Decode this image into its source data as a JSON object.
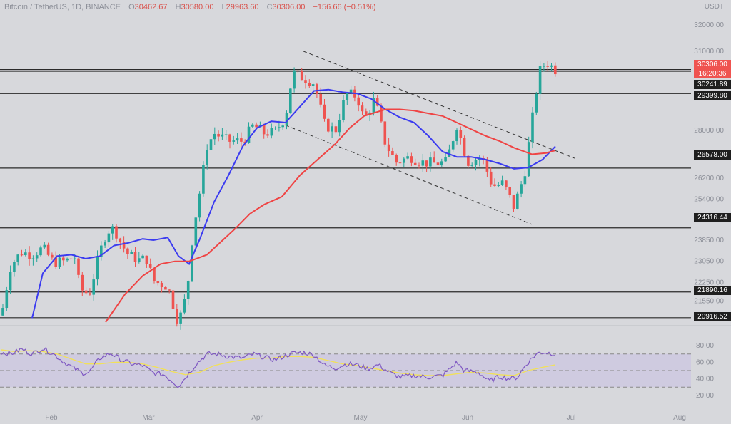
{
  "header": {
    "symbol": "Bitcoin / TetherUS, 1D, BINANCE",
    "o_label": "O",
    "o_value": "30462.67",
    "h_label": "H",
    "h_value": "30580.00",
    "l_label": "L",
    "l_value": "29963.60",
    "c_label": "C",
    "c_value": "30306.00",
    "change": "−156.66 (−0.51%)"
  },
  "unit_label": "USDT",
  "colors": {
    "up": "#26a69a",
    "down": "#ef5350",
    "ma_fast": "#3b3bf0",
    "ma_slow": "#ef4444",
    "rsi": "#7e57c2",
    "rsi_ma": "#f1e05a",
    "price_tag": "#ef5350"
  },
  "price_axis": {
    "min": 20750,
    "max": 32400,
    "ticks": [
      "32000.00",
      "31000.00",
      "28000.00",
      "27000.00",
      "26200.00",
      "25400.00",
      "24600.00",
      "23850.00",
      "23050.00",
      "22250.00",
      "21550.00"
    ]
  },
  "levels": [
    {
      "label": "30241.89",
      "value": 30241.89
    },
    {
      "label": "29399.80",
      "value": 29399.8
    },
    {
      "label": "26578.00",
      "value": 26578
    },
    {
      "label": "24316.44",
      "value": 24316.44
    },
    {
      "label": "21890.16",
      "value": 21890.16
    },
    {
      "label": "20916.52",
      "value": 20916.52
    }
  ],
  "current_price": {
    "label": "30306.00",
    "countdown": "16:20:36",
    "value": 30306
  },
  "rsi_axis": {
    "ticks": [
      "80.00",
      "60.00",
      "40.00",
      "20.00"
    ],
    "upper": 70,
    "mid": 50,
    "lower": 30
  },
  "time_axis": {
    "labels": [
      "Feb",
      "Mar",
      "Apr",
      "May",
      "Jun",
      "Jul",
      "Aug"
    ]
  },
  "chart_data": {
    "type": "candlestick",
    "title": "Bitcoin / TetherUS, 1D, BINANCE",
    "series": [
      {
        "name": "BTCUSDT",
        "anchors": [
          [
            2,
            21000
          ],
          [
            15,
            22900
          ],
          [
            30,
            23400
          ],
          [
            45,
            23300
          ],
          [
            60,
            23550
          ],
          [
            75,
            23000
          ],
          [
            90,
            23050
          ],
          [
            105,
            23200
          ],
          [
            112,
            22000
          ],
          [
            125,
            21800
          ],
          [
            140,
            23400
          ],
          [
            150,
            24200
          ],
          [
            160,
            24300
          ],
          [
            170,
            23700
          ],
          [
            180,
            23300
          ],
          [
            195,
            23100
          ],
          [
            205,
            23150
          ],
          [
            215,
            22300
          ],
          [
            235,
            22100
          ],
          [
            250,
            20700
          ],
          [
            262,
            21900
          ],
          [
            270,
            24100
          ],
          [
            280,
            25700
          ],
          [
            290,
            27400
          ],
          [
            300,
            27900
          ],
          [
            320,
            27600
          ],
          [
            340,
            27600
          ],
          [
            355,
            28200
          ],
          [
            370,
            27900
          ],
          [
            385,
            27950
          ],
          [
            400,
            28500
          ],
          [
            410,
            30200
          ],
          [
            425,
            30000
          ],
          [
            440,
            29800
          ],
          [
            455,
            28200
          ],
          [
            470,
            28000
          ],
          [
            485,
            29400
          ],
          [
            500,
            29300
          ],
          [
            510,
            28400
          ],
          [
            525,
            29200
          ],
          [
            540,
            27500
          ],
          [
            555,
            26800
          ],
          [
            575,
            27000
          ],
          [
            590,
            26800
          ],
          [
            610,
            26750
          ],
          [
            625,
            26800
          ],
          [
            640,
            28200
          ],
          [
            655,
            26800
          ],
          [
            675,
            27000
          ],
          [
            690,
            25900
          ],
          [
            705,
            26000
          ],
          [
            720,
            25100
          ],
          [
            735,
            26400
          ],
          [
            745,
            28300
          ],
          [
            755,
            30200
          ],
          [
            765,
            30600
          ],
          [
            778,
            30300
          ]
        ]
      },
      {
        "name": "MA fast",
        "anchors": [
          [
            45,
            20900
          ],
          [
            60,
            22600
          ],
          [
            80,
            23250
          ],
          [
            100,
            23300
          ],
          [
            120,
            23150
          ],
          [
            140,
            23250
          ],
          [
            160,
            23650
          ],
          [
            180,
            23750
          ],
          [
            200,
            23900
          ],
          [
            215,
            23850
          ],
          [
            235,
            23950
          ],
          [
            250,
            23250
          ],
          [
            265,
            22950
          ],
          [
            280,
            23900
          ],
          [
            300,
            25300
          ],
          [
            320,
            26300
          ],
          [
            340,
            27400
          ],
          [
            360,
            28100
          ],
          [
            380,
            28350
          ],
          [
            400,
            28300
          ],
          [
            420,
            28900
          ],
          [
            440,
            29500
          ],
          [
            460,
            29550
          ],
          [
            480,
            29450
          ],
          [
            500,
            29400
          ],
          [
            520,
            29200
          ],
          [
            540,
            28800
          ],
          [
            560,
            28500
          ],
          [
            580,
            28300
          ],
          [
            600,
            27800
          ],
          [
            620,
            27200
          ],
          [
            640,
            27000
          ],
          [
            660,
            27000
          ],
          [
            680,
            26900
          ],
          [
            700,
            26750
          ],
          [
            720,
            26550
          ],
          [
            740,
            26600
          ],
          [
            760,
            26900
          ],
          [
            778,
            27400
          ]
        ]
      },
      {
        "name": "MA slow",
        "anchors": [
          [
            148,
            20750
          ],
          [
            175,
            21800
          ],
          [
            200,
            22500
          ],
          [
            225,
            22950
          ],
          [
            245,
            23050
          ],
          [
            265,
            23050
          ],
          [
            290,
            23300
          ],
          [
            310,
            23800
          ],
          [
            330,
            24300
          ],
          [
            350,
            24850
          ],
          [
            370,
            25200
          ],
          [
            395,
            25500
          ],
          [
            420,
            26300
          ],
          [
            445,
            26900
          ],
          [
            470,
            27500
          ],
          [
            490,
            28100
          ],
          [
            510,
            28550
          ],
          [
            540,
            28800
          ],
          [
            560,
            28800
          ],
          [
            580,
            28750
          ],
          [
            600,
            28650
          ],
          [
            620,
            28550
          ],
          [
            640,
            28300
          ],
          [
            660,
            28050
          ],
          [
            680,
            27800
          ],
          [
            700,
            27600
          ],
          [
            720,
            27350
          ],
          [
            745,
            27100
          ],
          [
            765,
            27150
          ],
          [
            778,
            27250
          ]
        ]
      }
    ],
    "trendlines": [
      {
        "name": "channel-top",
        "from": [
          425,
          31000
        ],
        "to": [
          805,
          26950
        ]
      },
      {
        "name": "channel-bottom",
        "from": [
          400,
          28200
        ],
        "to": [
          745,
          24450
        ]
      }
    ],
    "rsi": {
      "name": "RSI",
      "anchors": [
        [
          2,
          72
        ],
        [
          15,
          70
        ],
        [
          30,
          76
        ],
        [
          45,
          70
        ],
        [
          60,
          77
        ],
        [
          75,
          70
        ],
        [
          90,
          60
        ],
        [
          105,
          52
        ],
        [
          115,
          47
        ],
        [
          125,
          48
        ],
        [
          140,
          65
        ],
        [
          155,
          71
        ],
        [
          170,
          63
        ],
        [
          185,
          58
        ],
        [
          200,
          56
        ],
        [
          215,
          47
        ],
        [
          230,
          45
        ],
        [
          250,
          31
        ],
        [
          262,
          44
        ],
        [
          275,
          58
        ],
        [
          290,
          70
        ],
        [
          305,
          70
        ],
        [
          320,
          67
        ],
        [
          340,
          65
        ],
        [
          355,
          70
        ],
        [
          370,
          66
        ],
        [
          385,
          63
        ],
        [
          400,
          68
        ],
        [
          410,
          71
        ],
        [
          425,
          72
        ],
        [
          440,
          69
        ],
        [
          455,
          56
        ],
        [
          470,
          53
        ],
        [
          485,
          58
        ],
        [
          500,
          57
        ],
        [
          515,
          52
        ],
        [
          530,
          57
        ],
        [
          545,
          48
        ],
        [
          560,
          42
        ],
        [
          580,
          44
        ],
        [
          600,
          42
        ],
        [
          620,
          44
        ],
        [
          640,
          60
        ],
        [
          650,
          50
        ],
        [
          670,
          48
        ],
        [
          685,
          37
        ],
        [
          700,
          43
        ],
        [
          715,
          40
        ],
        [
          725,
          42
        ],
        [
          735,
          55
        ],
        [
          745,
          65
        ],
        [
          755,
          72
        ],
        [
          765,
          72
        ],
        [
          778,
          70
        ]
      ]
    },
    "rsi_ma": {
      "name": "RSI-based MA",
      "anchors": [
        [
          2,
          75
        ],
        [
          20,
          73
        ],
        [
          40,
          74
        ],
        [
          60,
          73
        ],
        [
          80,
          70
        ],
        [
          100,
          64
        ],
        [
          120,
          58
        ],
        [
          140,
          58
        ],
        [
          160,
          60
        ],
        [
          180,
          60
        ],
        [
          200,
          58
        ],
        [
          220,
          54
        ],
        [
          240,
          49
        ],
        [
          260,
          45
        ],
        [
          280,
          48
        ],
        [
          300,
          56
        ],
        [
          320,
          60
        ],
        [
          340,
          63
        ],
        [
          360,
          65
        ],
        [
          380,
          65
        ],
        [
          400,
          67
        ],
        [
          420,
          67
        ],
        [
          440,
          66
        ],
        [
          460,
          62
        ],
        [
          480,
          58
        ],
        [
          500,
          56
        ],
        [
          520,
          53
        ],
        [
          540,
          50
        ],
        [
          560,
          47
        ],
        [
          580,
          45
        ],
        [
          600,
          44
        ],
        [
          620,
          44
        ],
        [
          640,
          46
        ],
        [
          660,
          48
        ],
        [
          680,
          47
        ],
        [
          700,
          45
        ],
        [
          720,
          44
        ],
        [
          740,
          50
        ],
        [
          760,
          54
        ],
        [
          778,
          57
        ]
      ]
    }
  }
}
